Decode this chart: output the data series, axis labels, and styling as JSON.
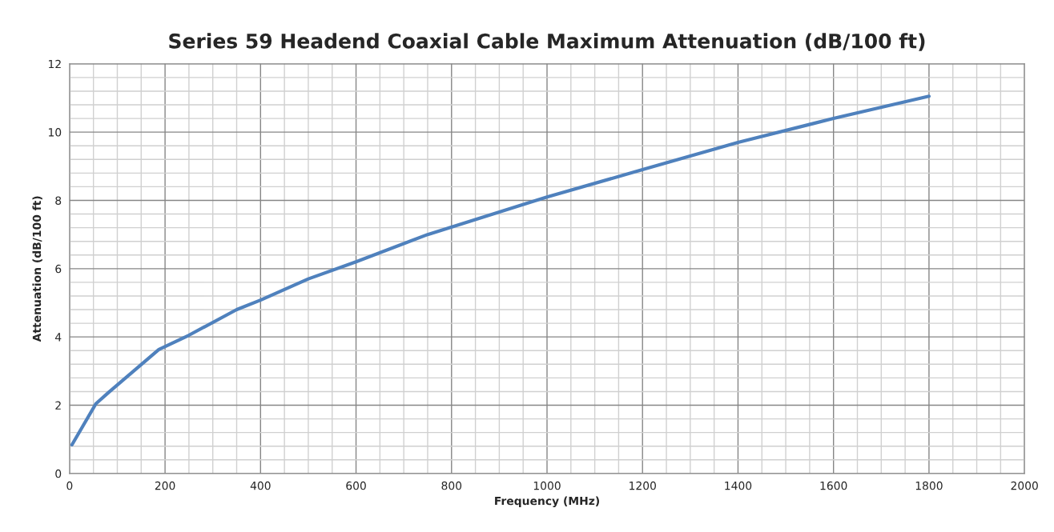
{
  "chart_data": {
    "type": "line",
    "title": "Series 59 Headend Coaxial Cable Maximum Attenuation (dB/100 ft)",
    "xlabel": "Frequency (MHz)",
    "ylabel": "Attenuation (dB/100 ft)",
    "x": [
      5,
      55,
      83,
      187,
      250,
      350,
      400,
      500,
      600,
      750,
      1000,
      1200,
      1400,
      1600,
      1800
    ],
    "series": [
      {
        "color": "#4f81bd",
        "values": [
          0.84,
          2.04,
          2.39,
          3.63,
          4.05,
          4.8,
          5.08,
          5.7,
          6.2,
          7.0,
          8.1,
          8.9,
          9.7,
          10.4,
          11.05
        ]
      }
    ],
    "xlim": [
      0,
      2000
    ],
    "xticks": [
      0,
      200,
      400,
      600,
      800,
      1000,
      1200,
      1400,
      1600,
      1800,
      2000
    ],
    "ylim": [
      0,
      12
    ],
    "yticks": [
      0,
      2,
      4,
      6,
      8,
      10,
      12
    ],
    "grid": true,
    "legend": false
  }
}
